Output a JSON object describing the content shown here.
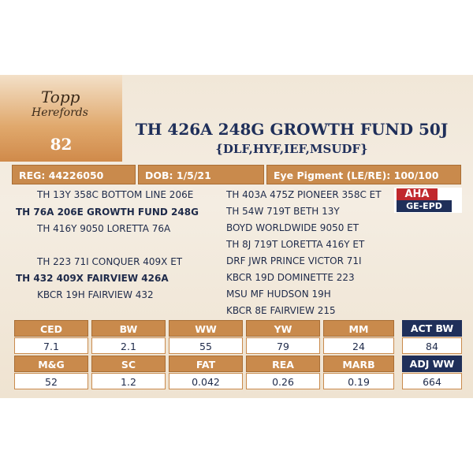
{
  "header": {
    "logo_top": "Topp",
    "logo_bottom": "Herefords",
    "lot": "82",
    "title": "TH 426A 248G GROWTH FUND 50J",
    "subtitle": "{DLF,HYF,IEF,MSUDF}"
  },
  "info_bar": [
    "REG: 44226050",
    "DOB: 1/5/21",
    "Eye Pigment (LE/RE): 100/100"
  ],
  "pedigree": {
    "left": [
      {
        "text": "TH 13Y 358C BOTTOM LINE 206E",
        "bold": false
      },
      {
        "text": "TH 76A 206E GROWTH FUND 248G",
        "bold": true
      },
      {
        "text": "TH 416Y 9050 LORETTA 76A",
        "bold": false
      },
      {
        "text": "TH 223 71I CONQUER 409X ET",
        "bold": false
      },
      {
        "text": "TH 432 409X FAIRVIEW 426A",
        "bold": true
      },
      {
        "text": "KBCR 19H FAIRVIEW 432",
        "bold": false
      }
    ],
    "right": [
      "TH 403A 475Z PIONEER 358C ET",
      "TH 54W 719T BETH 13Y",
      "BOYD WORLDWIDE 9050 ET",
      "TH 8J 719T LORETTA 416Y ET",
      "DRF JWR PRINCE VICTOR 71I",
      "KBCR 19D DOMINETTE 223",
      "MSU MF HUDSON 19H",
      "KBCR 8E FAIRVIEW 215"
    ]
  },
  "badge": {
    "top": "AHA",
    "bottom": "GE-EPD"
  },
  "epd_table": {
    "rows": [
      {
        "headers": [
          "CED",
          "BW",
          "WW",
          "YW",
          "MM"
        ],
        "values": [
          7.1,
          2.1,
          55,
          79,
          24
        ]
      },
      {
        "headers": [
          "M&G",
          "SC",
          "FAT",
          "REA",
          "MARB"
        ],
        "values": [
          52,
          1.2,
          0.042,
          0.26,
          0.19
        ]
      }
    ]
  },
  "weights": [
    {
      "header": "ACT BW",
      "value": 84
    },
    {
      "header": "ADJ WW",
      "value": 664
    }
  ]
}
